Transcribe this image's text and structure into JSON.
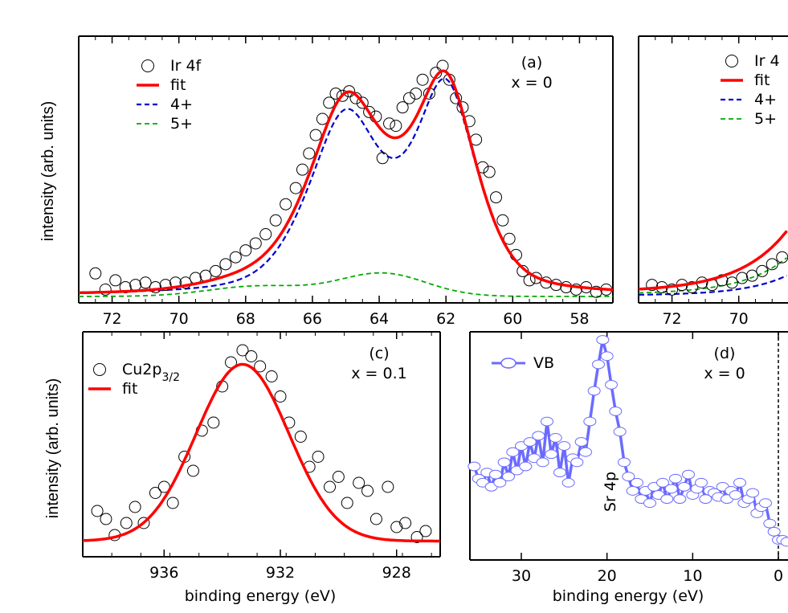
{
  "ylabel_top": "intensity (arb. units)",
  "ylabel_bottom": "intensity (arb. units)",
  "chart_data": [
    {
      "panel": "(a)",
      "type": "scatter",
      "annotation": [
        "(a)",
        "x = 0"
      ],
      "xlabel": "",
      "ylabel": "intensity (arb. units)",
      "xlim": [
        73,
        57
      ],
      "ylim": [
        0,
        1.0
      ],
      "x_ticks": [
        "72",
        "70",
        "68",
        "66",
        "64",
        "62",
        "60",
        "58"
      ],
      "legend": [
        "Ir 4f",
        "fit",
        "4+",
        "5+"
      ],
      "colors": {
        "fit": "#ff0000",
        "4+": "#0000cc",
        "5+": "#00aa00",
        "data": "#000000"
      },
      "series": [
        {
          "name": "Ir 4f",
          "style": "open-circles",
          "x": [
            72.5,
            72.2,
            71.9,
            71.6,
            71.3,
            71.0,
            70.7,
            70.4,
            70.1,
            69.8,
            69.5,
            69.2,
            68.9,
            68.6,
            68.3,
            68.0,
            67.7,
            67.4,
            67.1,
            66.8,
            66.5,
            66.3,
            66.1,
            65.9,
            65.7,
            65.5,
            65.3,
            65.1,
            64.9,
            64.7,
            64.5,
            64.3,
            64.1,
            63.9,
            63.7,
            63.5,
            63.3,
            63.1,
            62.9,
            62.7,
            62.5,
            62.3,
            62.1,
            61.9,
            61.7,
            61.5,
            61.3,
            61.1,
            60.9,
            60.7,
            60.5,
            60.3,
            60.1,
            59.9,
            59.7,
            59.5,
            59.3,
            59.0,
            58.7,
            58.4,
            58.1,
            57.8,
            57.5,
            57.2
          ],
          "y": [
            0.1,
            0.03,
            0.07,
            0.04,
            0.05,
            0.06,
            0.04,
            0.05,
            0.06,
            0.06,
            0.08,
            0.09,
            0.11,
            0.14,
            0.17,
            0.2,
            0.23,
            0.27,
            0.33,
            0.4,
            0.47,
            0.55,
            0.62,
            0.7,
            0.77,
            0.84,
            0.88,
            0.87,
            0.89,
            0.86,
            0.84,
            0.8,
            0.78,
            0.6,
            0.75,
            0.74,
            0.82,
            0.86,
            0.88,
            0.94,
            0.88,
            0.97,
            1.0,
            0.94,
            0.86,
            0.82,
            0.76,
            0.68,
            0.56,
            0.54,
            0.43,
            0.33,
            0.25,
            0.18,
            0.11,
            0.07,
            0.08,
            0.06,
            0.05,
            0.04,
            0.03,
            0.04,
            0.02,
            0.03
          ]
        },
        {
          "name": "fit",
          "style": "line",
          "generator": "sum-of-peaks"
        },
        {
          "name": "4+",
          "style": "dashed",
          "peaks": [
            {
              "center": 65.0,
              "height": 0.76,
              "width": 1.2
            },
            {
              "center": 62.0,
              "height": 0.87,
              "width": 1.0
            }
          ]
        },
        {
          "name": "5+",
          "style": "dashed",
          "peaks": [
            {
              "center": 67.6,
              "height": 0.045,
              "width": 1.5
            },
            {
              "center": 63.9,
              "height": 0.1,
              "width": 1.3
            }
          ]
        }
      ]
    },
    {
      "panel": "(b)",
      "type": "scatter",
      "annotation": [],
      "xlim": [
        73,
        57
      ],
      "ylim": [
        0,
        1.0
      ],
      "x_ticks": [
        "72",
        "70"
      ],
      "legend": [
        "Ir 4",
        "fit",
        "4+",
        "5+"
      ],
      "series": [
        {
          "name": "Ir 4",
          "style": "open-circles",
          "x": [
            72.6,
            72.3,
            72.0,
            71.7,
            71.4,
            71.1,
            70.8,
            70.5,
            70.2,
            69.9,
            69.6,
            69.3,
            69.0,
            68.7
          ],
          "y": [
            0.05,
            0.04,
            0.03,
            0.05,
            0.04,
            0.06,
            0.05,
            0.07,
            0.06,
            0.08,
            0.09,
            0.11,
            0.14,
            0.17
          ]
        },
        {
          "name": "fit",
          "style": "line"
        },
        {
          "name": "4+",
          "style": "dashed"
        },
        {
          "name": "5+",
          "style": "dashed"
        }
      ]
    },
    {
      "panel": "(c)",
      "type": "scatter",
      "annotation": [
        "(c)",
        "x = 0.1"
      ],
      "xlabel": "binding energy (eV)",
      "ylabel": "intensity (arb. units)",
      "xlim": [
        938.8,
        926.5
      ],
      "ylim": [
        0,
        1.0
      ],
      "x_ticks": [
        "936",
        "932",
        "928"
      ],
      "legend": [
        "Cu2p3/2",
        "fit"
      ],
      "series": [
        {
          "name": "Cu2p3/2",
          "style": "open-circles",
          "x": [
            938.3,
            938.0,
            937.7,
            937.3,
            937.0,
            936.7,
            936.3,
            936.0,
            935.7,
            935.3,
            935.0,
            934.7,
            934.3,
            934.0,
            933.7,
            933.3,
            933.0,
            932.7,
            932.3,
            932.0,
            931.7,
            931.3,
            931.0,
            930.7,
            930.3,
            930.0,
            929.7,
            929.3,
            929.0,
            928.7,
            928.3,
            928.0,
            927.7,
            927.3,
            927.0
          ],
          "y": [
            0.18,
            0.14,
            0.06,
            0.12,
            0.2,
            0.12,
            0.27,
            0.3,
            0.22,
            0.45,
            0.38,
            0.58,
            0.62,
            0.8,
            0.92,
            0.98,
            0.95,
            0.9,
            0.85,
            0.75,
            0.62,
            0.55,
            0.4,
            0.45,
            0.3,
            0.35,
            0.22,
            0.32,
            0.28,
            0.14,
            0.3,
            0.1,
            0.12,
            0.05,
            0.08
          ]
        },
        {
          "name": "fit",
          "style": "line",
          "peaks": [
            {
              "center": 933.3,
              "height": 0.88,
              "width": 1.6
            }
          ]
        }
      ]
    },
    {
      "panel": "(d)",
      "type": "line",
      "annotation": [
        "(d)",
        "x = 0",
        "Sr 4p"
      ],
      "xlabel": "binding energy (eV)",
      "xlim": [
        36,
        -1.5
      ],
      "ylim": [
        0,
        1.0
      ],
      "x_ticks": [
        "30",
        "20",
        "10",
        "0"
      ],
      "legend": [
        "VB"
      ],
      "colors": {
        "VB": "#6b6bff"
      },
      "series": [
        {
          "name": "VB",
          "style": "line-open-circles",
          "x": [
            35.5,
            35.0,
            34.5,
            34.0,
            33.5,
            33.0,
            32.5,
            32.0,
            31.5,
            31.0,
            30.5,
            30.0,
            29.5,
            29.0,
            28.5,
            28.0,
            27.5,
            27.0,
            26.5,
            26.0,
            25.5,
            25.0,
            24.5,
            24.0,
            23.5,
            23.0,
            22.5,
            22.0,
            21.5,
            21.0,
            20.5,
            20.0,
            19.5,
            19.0,
            18.5,
            18.0,
            17.5,
            17.0,
            16.5,
            16.0,
            15.5,
            15.0,
            14.5,
            14.0,
            13.5,
            13.0,
            12.5,
            12.0,
            11.5,
            11.0,
            10.5,
            10.0,
            9.5,
            9.0,
            8.5,
            8.0,
            7.5,
            7.0,
            6.5,
            6.0,
            5.5,
            5.0,
            4.5,
            4.0,
            3.5,
            3.0,
            2.5,
            2.0,
            1.5,
            1.0,
            0.5,
            0.0,
            -0.5,
            -1.0
          ],
          "y": [
            0.38,
            0.32,
            0.3,
            0.35,
            0.28,
            0.34,
            0.3,
            0.4,
            0.33,
            0.45,
            0.36,
            0.48,
            0.38,
            0.5,
            0.42,
            0.53,
            0.4,
            0.6,
            0.44,
            0.52,
            0.35,
            0.48,
            0.3,
            0.42,
            0.4,
            0.5,
            0.45,
            0.6,
            0.75,
            0.88,
            1.0,
            0.92,
            0.78,
            0.65,
            0.55,
            0.4,
            0.33,
            0.26,
            0.3,
            0.22,
            0.26,
            0.2,
            0.28,
            0.24,
            0.3,
            0.22,
            0.27,
            0.32,
            0.22,
            0.28,
            0.34,
            0.24,
            0.27,
            0.3,
            0.22,
            0.26,
            0.25,
            0.23,
            0.28,
            0.22,
            0.26,
            0.24,
            0.3,
            0.2,
            0.22,
            0.25,
            0.15,
            0.18,
            0.2,
            0.1,
            0.06,
            0.02,
            0.02,
            0.01
          ]
        }
      ],
      "vline_x": 0
    }
  ]
}
